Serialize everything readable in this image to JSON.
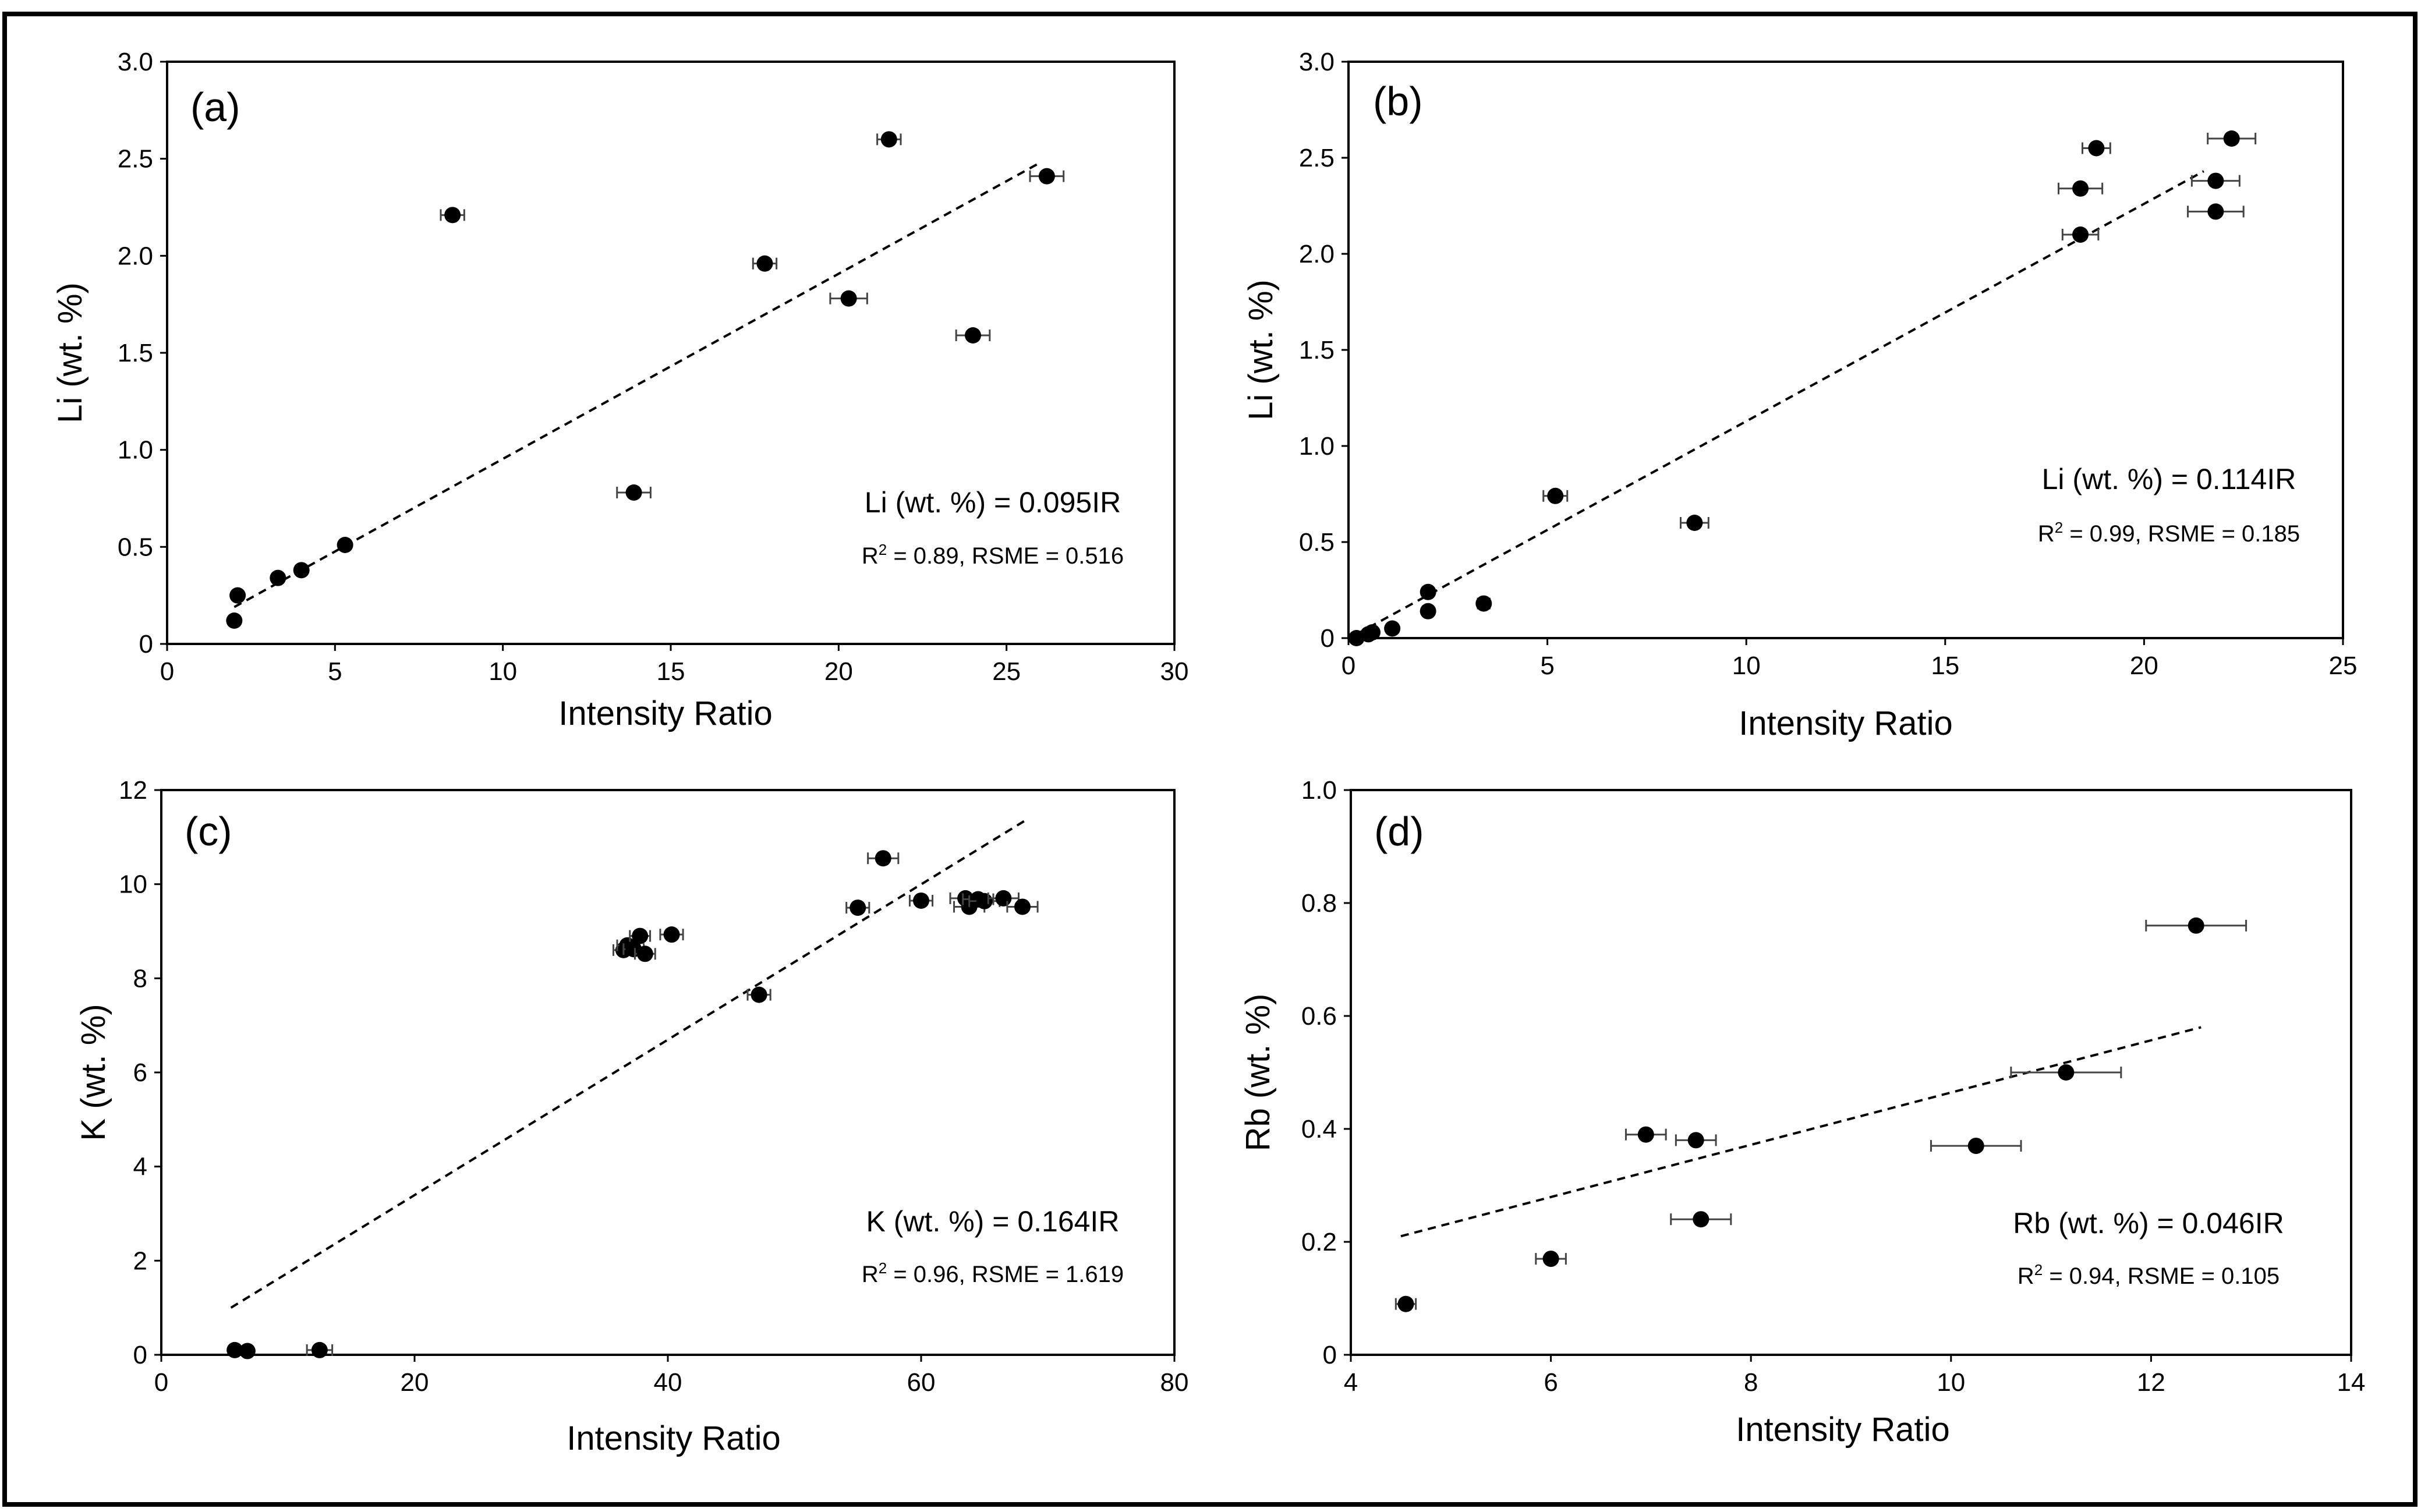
{
  "chart_data": [
    {
      "type": "scatter",
      "panel": "(a)",
      "xlabel": "Intensity Ratio",
      "ylabel": "Li (wt. %)",
      "xlim": [
        0,
        30
      ],
      "ylim": [
        0,
        3.0
      ],
      "xticks": [
        "0",
        "5",
        "10",
        "15",
        "20",
        "25",
        "30"
      ],
      "yticks": [
        "0",
        "0.5",
        "1.0",
        "1.5",
        "2.0",
        "2.5",
        "3.0"
      ],
      "points": [
        {
          "x": 2.0,
          "y": 0.12,
          "xerr": 0.0
        },
        {
          "x": 2.1,
          "y": 0.25,
          "xerr": 0.0
        },
        {
          "x": 3.3,
          "y": 0.34,
          "xerr": 0.0
        },
        {
          "x": 4.0,
          "y": 0.38,
          "xerr": 0.0
        },
        {
          "x": 5.3,
          "y": 0.51,
          "xerr": 0.0
        },
        {
          "x": 8.5,
          "y": 2.21,
          "xerr": 0.35
        },
        {
          "x": 13.9,
          "y": 0.78,
          "xerr": 0.5
        },
        {
          "x": 17.8,
          "y": 1.96,
          "xerr": 0.35
        },
        {
          "x": 20.3,
          "y": 1.78,
          "xerr": 0.55
        },
        {
          "x": 21.5,
          "y": 2.6,
          "xerr": 0.35
        },
        {
          "x": 24.0,
          "y": 1.59,
          "xerr": 0.5
        },
        {
          "x": 26.2,
          "y": 2.41,
          "xerr": 0.5
        }
      ],
      "trendline": {
        "x": [
          2.0,
          26.0
        ],
        "y": [
          0.19,
          2.48
        ]
      },
      "equation": "Li (wt. %) = 0.095IR",
      "stats_prefix": "R",
      "stats_sup": "2",
      "stats_rest": " = 0.89, RSME = 0.516"
    },
    {
      "type": "scatter",
      "panel": "(b)",
      "xlabel": "Intensity Ratio",
      "ylabel": "Li (wt. %)",
      "xlim": [
        0,
        25
      ],
      "ylim": [
        0,
        3.0
      ],
      "xticks": [
        "0",
        "5",
        "10",
        "15",
        "20",
        "25"
      ],
      "yticks": [
        "0",
        "0.5",
        "1.0",
        "1.5",
        "2.0",
        "2.5",
        "3.0"
      ],
      "points": [
        {
          "x": 0.2,
          "y": 0.0,
          "xerr": 0.0
        },
        {
          "x": 0.5,
          "y": 0.02,
          "xerr": 0.0
        },
        {
          "x": 0.6,
          "y": 0.03,
          "xerr": 0.0
        },
        {
          "x": 1.1,
          "y": 0.05,
          "xerr": 0.0
        },
        {
          "x": 2.0,
          "y": 0.14,
          "xerr": 0.0
        },
        {
          "x": 2.0,
          "y": 0.24,
          "xerr": 0.0
        },
        {
          "x": 3.4,
          "y": 0.18,
          "xerr": 0.15
        },
        {
          "x": 5.2,
          "y": 0.74,
          "xerr": 0.3
        },
        {
          "x": 8.7,
          "y": 0.6,
          "xerr": 0.35
        },
        {
          "x": 18.4,
          "y": 2.1,
          "xerr": 0.45
        },
        {
          "x": 18.4,
          "y": 2.34,
          "xerr": 0.55
        },
        {
          "x": 18.8,
          "y": 2.55,
          "xerr": 0.35
        },
        {
          "x": 21.8,
          "y": 2.22,
          "xerr": 0.7
        },
        {
          "x": 21.8,
          "y": 2.38,
          "xerr": 0.6
        },
        {
          "x": 22.2,
          "y": 2.6,
          "xerr": 0.6
        }
      ],
      "trendline": {
        "x": [
          0.2,
          21.5
        ],
        "y": [
          0.02,
          2.43
        ]
      },
      "equation": "Li (wt. %) = 0.114IR",
      "stats_prefix": "R",
      "stats_sup": "2",
      "stats_rest": " = 0.99, RSME = 0.185"
    },
    {
      "type": "scatter",
      "panel": "(c)",
      "xlabel": "Intensity Ratio",
      "ylabel": "K (wt. %)",
      "xlim": [
        0,
        80
      ],
      "ylim": [
        0,
        12
      ],
      "xticks": [
        "0",
        "20",
        "40",
        "60",
        "80"
      ],
      "yticks": [
        "0",
        "2",
        "4",
        "6",
        "8",
        "10",
        "12"
      ],
      "points": [
        {
          "x": 5.8,
          "y": 0.1,
          "xerr": 0.0
        },
        {
          "x": 6.8,
          "y": 0.08,
          "xerr": 0.0
        },
        {
          "x": 12.5,
          "y": 0.1,
          "xerr": 1.0
        },
        {
          "x": 36.5,
          "y": 8.6,
          "xerr": 0.8
        },
        {
          "x": 36.8,
          "y": 8.7,
          "xerr": 0.8
        },
        {
          "x": 37.3,
          "y": 8.62,
          "xerr": 0.8
        },
        {
          "x": 37.8,
          "y": 8.9,
          "xerr": 0.8
        },
        {
          "x": 38.2,
          "y": 8.52,
          "xerr": 0.8
        },
        {
          "x": 40.3,
          "y": 8.93,
          "xerr": 0.9
        },
        {
          "x": 47.2,
          "y": 7.65,
          "xerr": 0.9
        },
        {
          "x": 55.0,
          "y": 9.5,
          "xerr": 0.9
        },
        {
          "x": 57.0,
          "y": 10.55,
          "xerr": 1.2
        },
        {
          "x": 60.0,
          "y": 9.65,
          "xerr": 0.9
        },
        {
          "x": 63.5,
          "y": 9.7,
          "xerr": 1.2
        },
        {
          "x": 63.8,
          "y": 9.52,
          "xerr": 1.2
        },
        {
          "x": 64.5,
          "y": 9.68,
          "xerr": 1.2
        },
        {
          "x": 65.0,
          "y": 9.64,
          "xerr": 1.2
        },
        {
          "x": 66.5,
          "y": 9.7,
          "xerr": 1.2
        },
        {
          "x": 68.0,
          "y": 9.52,
          "xerr": 1.2
        }
      ],
      "trendline": {
        "x": [
          5.5,
          68.5
        ],
        "y": [
          1.0,
          11.4
        ]
      },
      "equation": "K (wt. %) = 0.164IR",
      "stats_prefix": "R",
      "stats_sup": "2",
      "stats_rest": " = 0.96, RSME = 1.619"
    },
    {
      "type": "scatter",
      "panel": "(d)",
      "xlabel": "Intensity Ratio",
      "ylabel": "Rb (wt. %)",
      "xlim": [
        4,
        14
      ],
      "ylim": [
        0,
        1.0
      ],
      "xticks": [
        "4",
        "6",
        "8",
        "10",
        "12",
        "14"
      ],
      "yticks": [
        "0",
        "0.2",
        "0.4",
        "0.6",
        "0.8",
        "1.0"
      ],
      "points": [
        {
          "x": 4.55,
          "y": 0.09,
          "xerr": 0.1
        },
        {
          "x": 6.0,
          "y": 0.17,
          "xerr": 0.15
        },
        {
          "x": 6.95,
          "y": 0.39,
          "xerr": 0.2
        },
        {
          "x": 7.45,
          "y": 0.38,
          "xerr": 0.2
        },
        {
          "x": 7.5,
          "y": 0.24,
          "xerr": 0.3
        },
        {
          "x": 10.25,
          "y": 0.37,
          "xerr": 0.45
        },
        {
          "x": 11.15,
          "y": 0.5,
          "xerr": 0.55
        },
        {
          "x": 12.45,
          "y": 0.76,
          "xerr": 0.5
        }
      ],
      "trendline": {
        "x": [
          4.5,
          12.5
        ],
        "y": [
          0.21,
          0.58
        ]
      },
      "equation": "Rb (wt. %) = 0.046IR",
      "stats_prefix": "R",
      "stats_sup": "2",
      "stats_rest": " = 0.94, RSME = 0.105"
    }
  ]
}
